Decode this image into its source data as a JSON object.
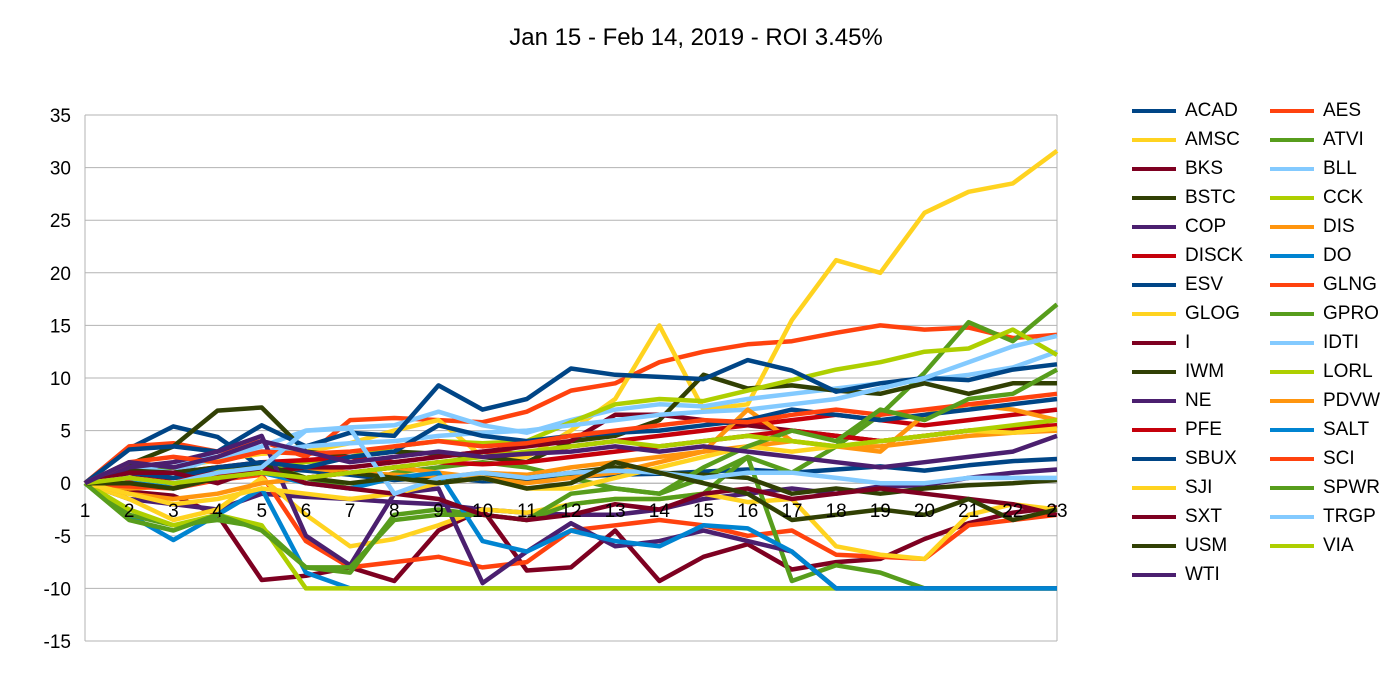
{
  "chart_data": {
    "type": "line",
    "title": "Jan 15 - Feb 14, 2019 - ROI 3.45%",
    "xlabel": "",
    "ylabel": "",
    "x": [
      1,
      2,
      3,
      4,
      5,
      6,
      7,
      8,
      9,
      10,
      11,
      12,
      13,
      14,
      15,
      16,
      17,
      18,
      19,
      20,
      21,
      22,
      23
    ],
    "ylim": [
      -15,
      35
    ],
    "yticks": [
      -15,
      -10,
      -5,
      0,
      5,
      10,
      15,
      20,
      25,
      30,
      35
    ],
    "grid": "horizontal",
    "legend_position": "right",
    "series": [
      {
        "name": "ACAD",
        "color": "#004586",
        "values": [
          0,
          3.3,
          5.4,
          4.4,
          1.5,
          1.2,
          0.8,
          0.3,
          0.6,
          0.2,
          0.3,
          0.6,
          0.8,
          0.9,
          1.1,
          1.3,
          1.0,
          1.3,
          1.6,
          1.2,
          1.7,
          2.1,
          2.3
        ]
      },
      {
        "name": "AES",
        "color": "#ff420e",
        "values": [
          0,
          3.5,
          3.8,
          3.0,
          4.0,
          2.5,
          6.0,
          6.2,
          6.0,
          5.8,
          6.8,
          8.8,
          9.5,
          11.5,
          12.5,
          13.2,
          13.5,
          14.3,
          15.0,
          14.6,
          14.8,
          13.8,
          14.1
        ]
      },
      {
        "name": "AMSC",
        "color": "#ffd320",
        "values": [
          0,
          0.5,
          1.5,
          2.2,
          2.8,
          3.0,
          3.8,
          5.0,
          6.0,
          2.5,
          2.5,
          5.0,
          8.0,
          15.0,
          7.0,
          7.5,
          15.5,
          21.2,
          20.0,
          25.7,
          27.7,
          28.5,
          31.6
        ]
      },
      {
        "name": "ATVI",
        "color": "#579d1c",
        "values": [
          0,
          1.0,
          1.5,
          1.0,
          2.0,
          0.5,
          -0.5,
          1.0,
          1.5,
          2.0,
          1.5,
          0.5,
          -0.5,
          -1.0,
          0.5,
          2.5,
          1.0,
          3.5,
          6.5,
          10.5,
          15.3,
          13.5,
          17.0
        ]
      },
      {
        "name": "BKS",
        "color": "#7e0021",
        "values": [
          0,
          -0.8,
          -1.2,
          -3.0,
          -9.2,
          -8.8,
          -8.0,
          -9.3,
          -4.5,
          -2.5,
          -8.3,
          -8.0,
          -4.5,
          -9.3,
          -7.0,
          -5.8,
          -8.2,
          -7.5,
          -7.2,
          -5.3,
          -3.8,
          -2.8,
          -2.3
        ]
      },
      {
        "name": "BLL",
        "color": "#83caff",
        "values": [
          0,
          1.5,
          1.0,
          2.5,
          3.5,
          5.0,
          5.3,
          5.5,
          6.8,
          5.5,
          4.8,
          6.0,
          7.0,
          7.5,
          7.3,
          8.0,
          8.5,
          9.0,
          9.5,
          9.8,
          10.3,
          11.0,
          12.5
        ]
      },
      {
        "name": "BSTC",
        "color": "#314004",
        "values": [
          0,
          1.8,
          3.5,
          6.9,
          7.2,
          3.0,
          2.5,
          3.0,
          2.8,
          2.5,
          2.0,
          4.0,
          4.5,
          6.0,
          10.3,
          9.0,
          9.3,
          8.8,
          8.5,
          9.5,
          8.5,
          9.5,
          9.5
        ]
      },
      {
        "name": "CCK",
        "color": "#aecf00",
        "values": [
          0,
          0.8,
          1.0,
          1.3,
          1.5,
          2.0,
          2.5,
          3.5,
          4.0,
          3.8,
          4.0,
          5.8,
          7.5,
          8.0,
          7.8,
          8.8,
          9.8,
          10.8,
          11.5,
          12.5,
          12.8,
          14.6,
          12.2
        ]
      },
      {
        "name": "COP",
        "color": "#4b1f6f",
        "values": [
          0,
          -1.5,
          -2.0,
          -2.5,
          -1.0,
          -1.3,
          -1.5,
          -1.8,
          -2.0,
          -2.5,
          -2.8,
          -3.0,
          -3.0,
          -2.5,
          -1.5,
          -1.0,
          -0.5,
          -1.0,
          -0.3,
          -0.2,
          0.5,
          1.0,
          1.3
        ]
      },
      {
        "name": "DIS",
        "color": "#ff950e",
        "values": [
          0,
          -0.5,
          -0.3,
          0.5,
          1.0,
          1.5,
          1.0,
          0.8,
          0.5,
          1.0,
          0.8,
          1.5,
          2.0,
          2.5,
          3.0,
          3.5,
          4.0,
          3.5,
          3.5,
          4.0,
          4.5,
          4.8,
          5.0
        ]
      },
      {
        "name": "DISCK",
        "color": "#c5000b",
        "values": [
          0,
          0.5,
          1.0,
          1.5,
          2.0,
          2.2,
          2.5,
          2.0,
          2.5,
          3.0,
          2.8,
          3.5,
          4.0,
          4.5,
          5.0,
          5.5,
          6.0,
          6.5,
          6.0,
          5.5,
          6.0,
          6.5,
          7.0
        ]
      },
      {
        "name": "DO",
        "color": "#0084d1",
        "values": [
          0,
          -3.0,
          -5.4,
          -3.0,
          -0.5,
          -8.5,
          -10,
          -10,
          -10,
          -10,
          -10,
          -10,
          -10,
          -10,
          -10,
          -10,
          -10,
          -10,
          -10,
          -10,
          -10,
          -10,
          -10
        ]
      },
      {
        "name": "ESV",
        "color": "#004586",
        "values": [
          0,
          3.2,
          3.5,
          3.0,
          5.5,
          3.5,
          4.8,
          4.5,
          9.3,
          7.0,
          8.0,
          10.9,
          10.3,
          10.1,
          9.9,
          11.7,
          10.7,
          8.7,
          9.5,
          10.0,
          9.8,
          10.8,
          11.3
        ]
      },
      {
        "name": "GLNG",
        "color": "#ff420e",
        "values": [
          0,
          -0.3,
          -0.5,
          0.3,
          0.8,
          -5.5,
          -8.0,
          -7.5,
          -7.0,
          -8.0,
          -7.5,
          -4.5,
          -4.0,
          -3.5,
          -4.0,
          -5.0,
          -4.5,
          -6.8,
          -7.0,
          -7.2,
          -4.0,
          -3.5,
          -3.0
        ]
      },
      {
        "name": "GLOG",
        "color": "#ffd320",
        "values": [
          0,
          -1.5,
          -3.5,
          -2.5,
          0.5,
          -3.0,
          -6.0,
          -5.3,
          -4.0,
          -2.5,
          -2.8,
          -2.0,
          -1.5,
          -1.5,
          -1.0,
          -1.8,
          -1.5,
          -6.0,
          -6.8,
          -7.2,
          -3.0,
          -2.0,
          -2.5
        ]
      },
      {
        "name": "GPRO",
        "color": "#579d1c",
        "values": [
          0,
          -3.0,
          -4.0,
          -3.5,
          -4.2,
          -8.0,
          -8.5,
          -3.0,
          -2.5,
          -3.0,
          -3.5,
          -2.0,
          -1.5,
          -1.5,
          -1.0,
          2.5,
          -9.3,
          -7.8,
          -8.5,
          -10,
          -10,
          -10,
          -10
        ]
      },
      {
        "name": "I",
        "color": "#7e0021",
        "values": [
          0,
          0.5,
          0.5,
          1.0,
          1.0,
          1.5,
          1.5,
          2.0,
          2.5,
          3.0,
          3.5,
          4.0,
          6.5,
          6.5,
          6.0,
          5.5,
          5.0,
          4.5,
          4.0,
          4.5,
          5.0,
          5.0,
          5.5
        ]
      },
      {
        "name": "IDTI",
        "color": "#83caff",
        "values": [
          0,
          1.0,
          2.0,
          2.5,
          3.0,
          3.5,
          3.8,
          4.0,
          4.5,
          4.8,
          5.0,
          5.5,
          6.0,
          6.5,
          6.8,
          7.0,
          7.5,
          8.0,
          9.0,
          10.0,
          11.5,
          13.0,
          14.0
        ]
      },
      {
        "name": "IWM",
        "color": "#314004",
        "values": [
          0,
          1.2,
          1.0,
          1.5,
          1.8,
          0.5,
          1.0,
          0.5,
          0.2,
          0.5,
          0.5,
          1.0,
          1.5,
          1.0,
          0.8,
          0.5,
          -1.0,
          -0.5,
          -1.0,
          -0.5,
          -0.2,
          0.0,
          0.3
        ]
      },
      {
        "name": "LORL",
        "color": "#aecf00",
        "values": [
          0,
          -2.5,
          -4.0,
          -3.0,
          -4.0,
          -10,
          -10,
          -10,
          -10,
          -10,
          -10,
          -10,
          -10,
          -10,
          -10,
          -10,
          -10,
          -10,
          -10,
          -10,
          -10,
          -10,
          -10
        ]
      },
      {
        "name": "NE",
        "color": "#4b1f6f",
        "values": [
          0,
          1.5,
          2.0,
          3.0,
          4.5,
          -5.0,
          -7.8,
          -1.0,
          -0.5,
          -9.5,
          -6.5,
          -3.8,
          -6.0,
          -5.5,
          -4.5,
          -5.5,
          -6.5,
          -10,
          -10,
          -10,
          -10,
          -10,
          -10
        ]
      },
      {
        "name": "PDVW",
        "color": "#ff950e",
        "values": [
          0,
          -1.0,
          -1.5,
          -1.0,
          0.0,
          0.5,
          1.0,
          1.5,
          1.0,
          0.5,
          0.0,
          0.5,
          1.0,
          2.0,
          3.0,
          7.0,
          4.0,
          3.5,
          3.0,
          6.5,
          7.5,
          7.0,
          6.0
        ]
      },
      {
        "name": "PFE",
        "color": "#c5000b",
        "values": [
          0,
          0.3,
          0.5,
          0.8,
          1.0,
          0.5,
          1.0,
          1.5,
          2.0,
          1.8,
          2.0,
          2.5,
          3.0,
          3.5,
          4.0,
          4.5,
          5.0,
          4.5,
          4.0,
          4.5,
          5.0,
          5.3,
          5.5
        ]
      },
      {
        "name": "SALT",
        "color": "#0084d1",
        "values": [
          0,
          0.5,
          -0.5,
          0.5,
          1.0,
          0.0,
          -0.5,
          0.5,
          1.0,
          -5.5,
          -6.5,
          -4.5,
          -5.5,
          -6.0,
          -4.0,
          -4.3,
          -6.5,
          -10,
          -10,
          -10,
          -10,
          -10,
          -10
        ]
      },
      {
        "name": "SBUX",
        "color": "#004586",
        "values": [
          0,
          1.0,
          0.5,
          1.5,
          2.0,
          1.5,
          2.5,
          3.0,
          5.5,
          4.5,
          4.0,
          4.5,
          4.8,
          5.0,
          5.5,
          6.0,
          7.0,
          6.5,
          6.0,
          6.5,
          7.0,
          7.5,
          8.0
        ]
      },
      {
        "name": "SCI",
        "color": "#ff420e",
        "values": [
          0,
          2.0,
          2.5,
          2.0,
          3.0,
          2.8,
          3.0,
          3.5,
          4.0,
          3.5,
          3.8,
          4.5,
          5.0,
          5.5,
          6.0,
          5.8,
          6.5,
          7.0,
          6.5,
          7.0,
          7.5,
          8.0,
          8.5
        ]
      },
      {
        "name": "SJI",
        "color": "#ffd320",
        "values": [
          0,
          -1.0,
          -2.0,
          -1.5,
          -0.5,
          -1.0,
          -1.5,
          -1.0,
          0.0,
          0.5,
          -0.5,
          -0.5,
          0.5,
          1.5,
          2.5,
          3.5,
          3.0,
          3.5,
          4.0,
          4.5,
          5.0,
          4.8,
          5.2
        ]
      },
      {
        "name": "SPWR",
        "color": "#579d1c",
        "values": [
          0,
          -3.5,
          -4.5,
          -3.0,
          -4.5,
          -8.0,
          -8.0,
          -3.5,
          -3.0,
          -3.0,
          -3.5,
          -1.0,
          -0.5,
          -1.0,
          1.5,
          3.5,
          5.0,
          4.0,
          7.0,
          6.0,
          8.0,
          8.5,
          10.8
        ]
      },
      {
        "name": "SXT",
        "color": "#7e0021",
        "values": [
          0,
          1.0,
          1.0,
          0.0,
          1.5,
          0.0,
          -0.5,
          -1.0,
          -1.5,
          -3.0,
          -3.5,
          -3.0,
          -2.0,
          -2.5,
          -1.0,
          -0.5,
          -1.5,
          -1.0,
          -0.5,
          -1.0,
          -1.5,
          -2.0,
          -3.0
        ]
      },
      {
        "name": "TRGP",
        "color": "#83caff",
        "values": [
          0,
          0.5,
          0.0,
          1.0,
          1.5,
          5.0,
          5.2,
          -1.0,
          0.5,
          1.0,
          0.5,
          1.0,
          1.2,
          1.0,
          0.5,
          1.0,
          1.0,
          0.5,
          0.0,
          0.0,
          0.5,
          0.5,
          0.5
        ]
      },
      {
        "name": "USM",
        "color": "#314004",
        "values": [
          0,
          0.0,
          -0.5,
          0.5,
          1.0,
          0.5,
          0.0,
          0.5,
          0.0,
          0.5,
          -0.5,
          0.0,
          2.0,
          1.0,
          0.0,
          -1.0,
          -3.5,
          -3.0,
          -2.5,
          -3.0,
          -1.5,
          -3.5,
          -2.5
        ]
      },
      {
        "name": "VIA",
        "color": "#aecf00",
        "values": [
          0,
          0.5,
          0.0,
          0.5,
          1.0,
          0.5,
          1.0,
          1.5,
          2.0,
          2.5,
          3.0,
          3.5,
          4.0,
          3.5,
          4.0,
          4.5,
          4.0,
          3.5,
          4.0,
          4.5,
          5.0,
          5.5,
          6.0
        ]
      },
      {
        "name": "WTI",
        "color": "#4b1f6f",
        "values": [
          0,
          2.0,
          1.5,
          2.5,
          4.0,
          3.0,
          2.0,
          2.5,
          3.0,
          2.5,
          2.8,
          3.0,
          3.5,
          3.0,
          3.5,
          3.0,
          2.5,
          2.0,
          1.5,
          2.0,
          2.5,
          3.0,
          4.5
        ]
      }
    ]
  }
}
